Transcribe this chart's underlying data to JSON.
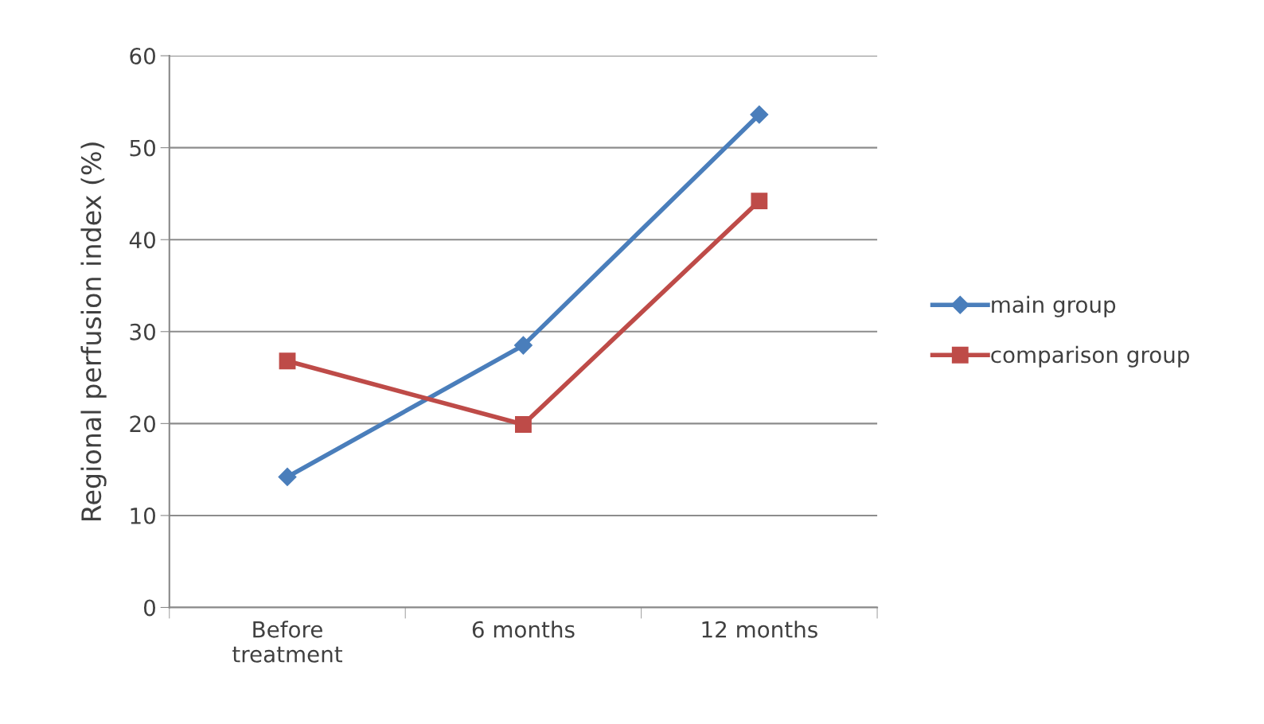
{
  "chart_data": {
    "type": "line",
    "ylabel": "Regional perfusion index (%)",
    "categories": [
      "Before\ntreatment",
      "6 months",
      "12 months"
    ],
    "series": [
      {
        "name": "main group",
        "color": "#4a7ebb",
        "values": [
          14.2,
          28.5,
          53.6
        ],
        "marker": "diamond"
      },
      {
        "name": "comparison group",
        "color": "#be4b48",
        "values": [
          26.8,
          19.9,
          44.2
        ],
        "marker": "square"
      }
    ],
    "ylim": [
      0,
      60
    ],
    "yticks": [
      0,
      10,
      20,
      30,
      40,
      50,
      60
    ],
    "grid": "y",
    "legend": "right",
    "line_style": "solid"
  }
}
